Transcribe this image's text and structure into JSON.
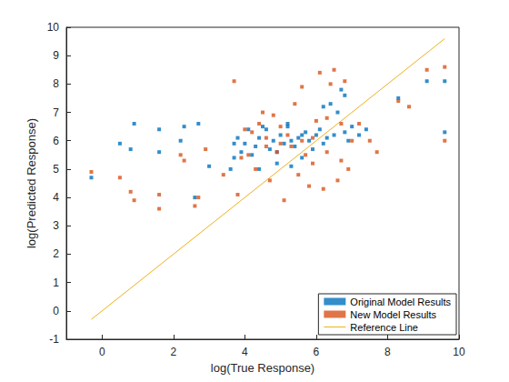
{
  "chart_data": {
    "type": "scatter",
    "xlabel": "log(True Response)",
    "ylabel": "log(Predicted Response)",
    "xlim": [
      -1,
      10
    ],
    "xticks": [
      0,
      2,
      4,
      6,
      8,
      10
    ],
    "ylim": [
      -1,
      10
    ],
    "yticks": [
      -1,
      0,
      1,
      2,
      3,
      4,
      5,
      6,
      7,
      8,
      9,
      10
    ],
    "grid": false,
    "legend": "lower right",
    "series": [
      {
        "name": "Original Model Results",
        "type": "scatter",
        "marker": "square",
        "color": "#0072BD",
        "x": [
          -0.3,
          0.5,
          0.8,
          0.9,
          1.6,
          1.6,
          2.2,
          2.3,
          2.6,
          2.7,
          3.0,
          3.6,
          3.7,
          3.8,
          3.9,
          4.0,
          4.1,
          4.2,
          4.3,
          4.4,
          4.5,
          4.6,
          4.7,
          4.8,
          4.9,
          5.0,
          5.1,
          5.2,
          5.3,
          5.4,
          5.5,
          5.6,
          5.7,
          5.8,
          5.9,
          6.0,
          6.1,
          6.2,
          6.3,
          6.4,
          6.5,
          6.6,
          6.7,
          6.8,
          6.9,
          7.0,
          7.2,
          7.4,
          8.3,
          9.1,
          9.6,
          9.6,
          6.8,
          5.2,
          4.4,
          3.7,
          5.6,
          6.2,
          4.9,
          5.3
        ],
        "values": [
          4.7,
          5.9,
          5.7,
          6.6,
          5.6,
          6.4,
          6.0,
          6.5,
          4.0,
          6.6,
          5.1,
          5.0,
          5.4,
          6.1,
          5.6,
          5.9,
          6.4,
          5.5,
          5.8,
          6.1,
          6.5,
          6.4,
          5.7,
          6.0,
          5.2,
          6.2,
          5.9,
          6.5,
          6.0,
          5.8,
          6.1,
          5.4,
          6.3,
          6.0,
          5.7,
          6.2,
          6.4,
          5.9,
          6.1,
          7.3,
          6.2,
          7.0,
          7.8,
          6.3,
          6.0,
          6.5,
          6.2,
          6.4,
          7.5,
          8.1,
          8.1,
          6.3,
          7.6,
          6.6,
          5.0,
          5.9,
          6.2,
          7.2,
          5.6,
          5.1
        ]
      },
      {
        "name": "New Model Results",
        "type": "scatter",
        "marker": "square",
        "color": "#D95319",
        "x": [
          -0.3,
          0.5,
          0.8,
          0.9,
          1.6,
          1.6,
          2.2,
          2.3,
          2.6,
          2.7,
          2.9,
          3.4,
          3.7,
          3.8,
          3.9,
          4.0,
          4.2,
          4.3,
          4.4,
          4.5,
          4.6,
          4.7,
          4.8,
          4.9,
          5.0,
          5.1,
          5.2,
          5.3,
          5.4,
          5.5,
          5.6,
          5.7,
          5.8,
          5.9,
          6.0,
          6.1,
          6.2,
          6.3,
          6.4,
          6.5,
          6.6,
          6.7,
          6.8,
          6.9,
          7.0,
          7.2,
          7.5,
          7.7,
          8.3,
          8.6,
          9.1,
          9.6,
          9.6,
          5.0,
          5.6,
          6.3,
          4.1,
          5.9,
          6.7,
          4.6
        ],
        "values": [
          4.9,
          4.7,
          4.2,
          3.9,
          3.6,
          4.1,
          5.5,
          5.3,
          3.7,
          4.0,
          5.7,
          4.8,
          8.1,
          4.1,
          5.4,
          6.4,
          6.3,
          5.0,
          6.6,
          7.0,
          6.1,
          4.6,
          6.9,
          5.6,
          5.9,
          3.9,
          6.2,
          5.8,
          7.3,
          4.8,
          6.0,
          5.5,
          4.4,
          5.2,
          6.7,
          8.4,
          4.3,
          5.6,
          8.0,
          8.5,
          4.6,
          6.6,
          8.1,
          5.0,
          6.0,
          6.6,
          6.0,
          5.6,
          7.4,
          7.2,
          8.5,
          8.6,
          6.0,
          6.5,
          7.9,
          6.8,
          5.5,
          6.1,
          5.3,
          5.8
        ]
      },
      {
        "name": "Reference Line",
        "type": "line",
        "line_style": "solid",
        "color": "#EDB120",
        "x": [
          -0.3,
          9.6
        ],
        "values": [
          -0.3,
          9.6
        ]
      }
    ]
  }
}
